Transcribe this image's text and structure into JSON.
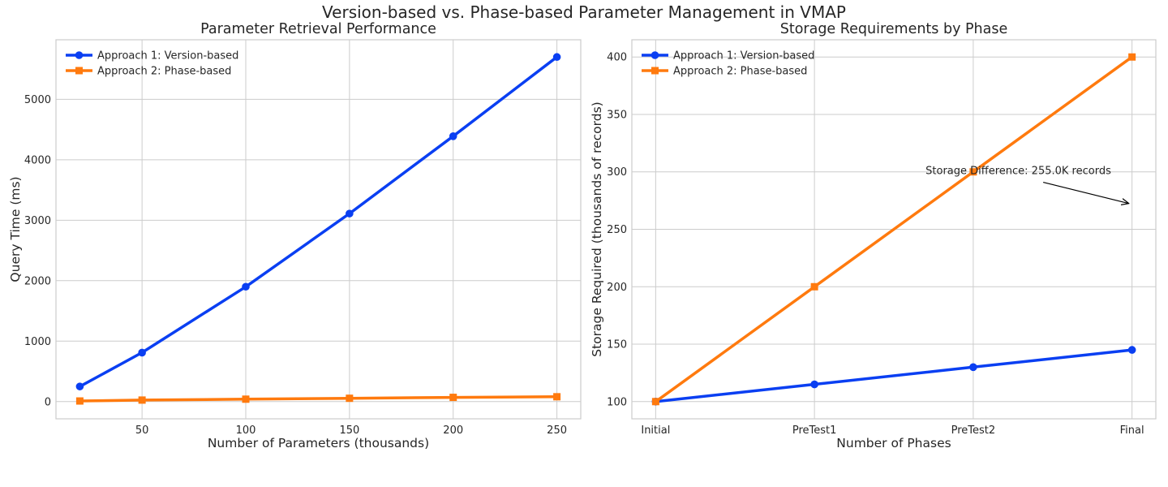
{
  "figure": {
    "suptitle": "Version-based vs. Phase-based Parameter Management in VMAP"
  },
  "colors": {
    "version": "#0a3ff2",
    "phase": "#ff7a0e"
  },
  "chart_data": [
    {
      "type": "line",
      "title": "Parameter Retrieval Performance",
      "xlabel": "Number of Parameters (thousands)",
      "ylabel": "Query Time (ms)",
      "x": [
        20,
        50,
        100,
        150,
        200,
        250
      ],
      "xticks": [
        "50",
        "100",
        "150",
        "200",
        "250"
      ],
      "xtick_values": [
        50,
        100,
        150,
        200,
        250
      ],
      "yticks": [
        "0",
        "1000",
        "2000",
        "3000",
        "4000",
        "5000"
      ],
      "ytick_values": [
        0,
        1000,
        2000,
        3000,
        4000,
        5000
      ],
      "xlim": [
        8.5,
        261.5
      ],
      "ylim": [
        -285,
        5985
      ],
      "grid": true,
      "legend_position": "upper-left",
      "series": [
        {
          "name": "Approach 1: Version-based",
          "marker": "circle",
          "values": [
            250,
            810,
            1900,
            3110,
            4390,
            5700
          ]
        },
        {
          "name": "Approach 2: Phase-based",
          "marker": "square",
          "values": [
            10,
            25,
            40,
            55,
            70,
            80
          ]
        }
      ]
    },
    {
      "type": "line",
      "title": "Storage Requirements by Phase",
      "xlabel": "Number of Phases",
      "ylabel": "Storage Required (thousands of records)",
      "categories": [
        "Initial",
        "PreTest1",
        "PreTest2",
        "Final"
      ],
      "yticks": [
        "100",
        "150",
        "200",
        "250",
        "300",
        "350",
        "400"
      ],
      "ytick_values": [
        100,
        150,
        200,
        250,
        300,
        350,
        400
      ],
      "xlim": [
        -0.15,
        3.15
      ],
      "ylim": [
        85,
        415
      ],
      "grid": true,
      "legend_position": "upper-left",
      "series": [
        {
          "name": "Approach 1: Version-based",
          "marker": "circle",
          "values": [
            100,
            115,
            130,
            145
          ]
        },
        {
          "name": "Approach 2: Phase-based",
          "marker": "square",
          "values": [
            100,
            200,
            300,
            400
          ]
        }
      ],
      "annotation": {
        "text": "Storage Difference: 255.0K records",
        "text_x": 1.7,
        "text_y": 298,
        "arrow_to_x": 2.98,
        "arrow_to_y": 272.5
      }
    }
  ]
}
